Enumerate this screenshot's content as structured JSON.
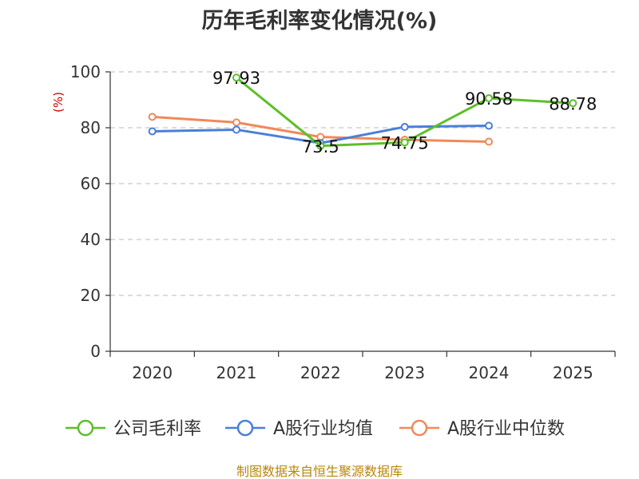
{
  "chart_data": {
    "type": "line",
    "title": "历年毛利率变化情况(%)",
    "ylabel": "(%)",
    "xlabel": "",
    "categories": [
      "2020",
      "2021",
      "2022",
      "2023",
      "2024",
      "2025"
    ],
    "ylim": [
      0,
      100
    ],
    "yticks": [
      0,
      20,
      40,
      60,
      80,
      100
    ],
    "grid": true,
    "legend_position": "bottom",
    "series": [
      {
        "name": "公司毛利率",
        "color": "#5cbf2a",
        "values": [
          null,
          97.93,
          73.5,
          74.75,
          90.58,
          88.78
        ],
        "labels": [
          null,
          "97.93",
          "73.5",
          "74.75",
          "90.58",
          "88.78"
        ]
      },
      {
        "name": "A股行业均值",
        "color": "#4a7fd8",
        "values": [
          78.7,
          79.3,
          74.5,
          80.3,
          80.7,
          null
        ]
      },
      {
        "name": "A股行业中位数",
        "color": "#f0895a",
        "values": [
          83.9,
          81.9,
          76.7,
          75.7,
          75.0,
          null
        ]
      }
    ],
    "source": "制图数据来自恒生聚源数据库"
  }
}
